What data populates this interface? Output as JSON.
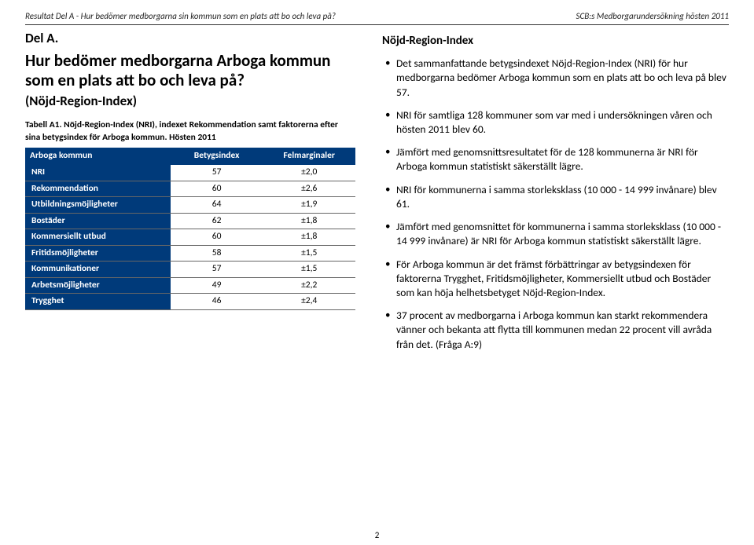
{
  "header": {
    "left": "Resultat Del A - Hur bedömer medborgarna sin kommun som en plats att bo och leva på?",
    "right": "SCB:s Medborgarundersökning hösten 2011"
  },
  "left": {
    "sectionLabel": "Del A.",
    "heading": "Hur bedömer medborgarna Arboga kommun som en plats att bo och leva på?",
    "subheading": "(Nöjd-Region-Index)",
    "tableCaption1": "Tabell A1. Nöjd-Region-Index (NRI), indexet Rekommendation samt faktorerna efter",
    "tableCaption2": "sina betygsindex för Arboga kommun. Hösten 2011",
    "table": {
      "columns": [
        "Arboga kommun",
        "Betygsindex",
        "Felmarginaler"
      ],
      "rows": [
        [
          "NRI",
          "57",
          "±2,0"
        ],
        [
          "Rekommendation",
          "60",
          "±2,6"
        ],
        [
          "Utbildningsmöjligheter",
          "64",
          "±1,9"
        ],
        [
          "Bostäder",
          "62",
          "±1,8"
        ],
        [
          "Kommersiellt utbud",
          "60",
          "±1,8"
        ],
        [
          "Fritidsmöjligheter",
          "58",
          "±1,5"
        ],
        [
          "Kommunikationer",
          "57",
          "±1,5"
        ],
        [
          "Arbetsmöjligheter",
          "49",
          "±2,2"
        ],
        [
          "Trygghet",
          "46",
          "±2,4"
        ]
      ],
      "header_bg": "#003a7a",
      "header_fg": "#ffffff",
      "rowlabel_bg": "#003a7a",
      "rowlabel_fg": "#ffffff",
      "cell_bg": "#ffffff",
      "cell_fg": "#000000",
      "border_color": "#666666"
    }
  },
  "right": {
    "heading": "Nöjd-Region-Index",
    "bullets": [
      "Det sammanfattande betygsindexet Nöjd-Region-Index (NRI) för hur medborgarna bedömer Arboga kommun som en plats att bo och leva på blev 57.",
      "NRI för samtliga 128 kommuner som var med i undersökningen våren och hösten 2011 blev 60.",
      "Jämfört med genomsnittsresultatet för de 128 kommunerna är NRI för Arboga kommun statistiskt säkerställt lägre.",
      "NRI för kommunerna i samma storleksklass (10 000 - 14 999 invånare) blev 61.",
      "Jämfört med genomsnittet för kommunerna i samma storleksklass (10 000 - 14 999 invånare) är NRI för Arboga kommun statistiskt säkerställt lägre.",
      "För Arboga kommun är det främst förbättringar av betygsindexen för faktorerna Trygghet, Fritidsmöjligheter, Kommersiellt utbud och Bostäder som kan höja helhetsbetyget Nöjd-Region-Index.",
      "37 procent av medborgarna i Arboga kommun kan starkt rekommendera vänner och bekanta att flytta till kommunen medan 22 procent vill avråda från det. (Fråga A:9)"
    ]
  },
  "pageNumber": "2"
}
